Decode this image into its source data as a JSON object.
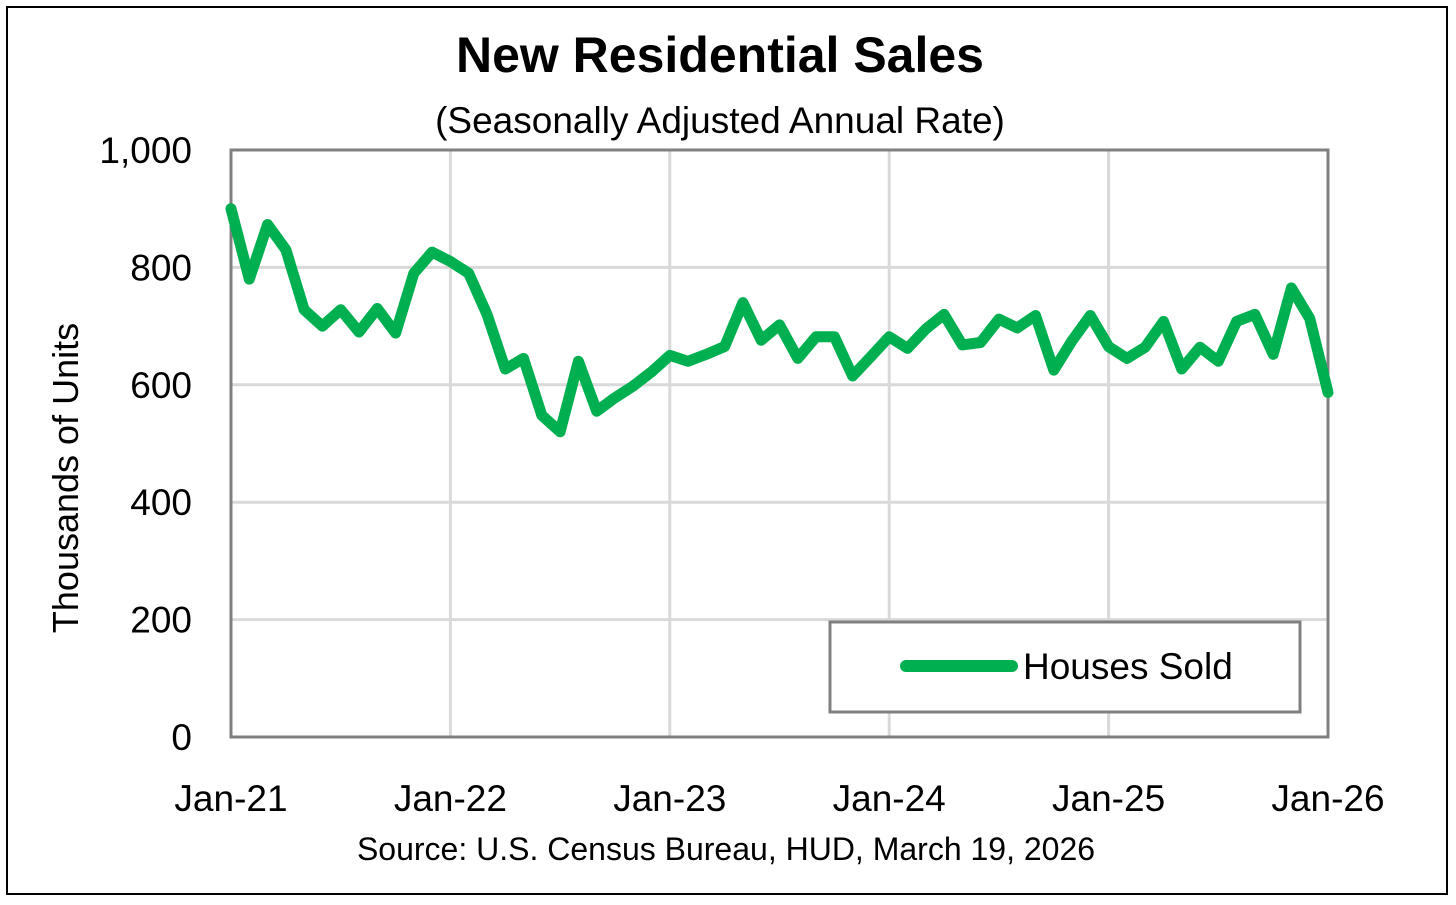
{
  "chart_data": {
    "type": "line",
    "title": "New Residential Sales",
    "subtitle": "(Seasonally Adjusted Annual Rate)",
    "ylabel": "Thousands of Units",
    "xlabel": "",
    "source": "Source:  U.S. Census Bureau, HUD, March 19, 2026",
    "ylim": [
      0,
      1000
    ],
    "yticks": [
      0,
      200,
      400,
      600,
      800,
      1000
    ],
    "ytick_labels": [
      "0",
      "200",
      "400",
      "600",
      "800",
      "1,000"
    ],
    "xticks": [
      0,
      12,
      24,
      36,
      48,
      60
    ],
    "xtick_labels": [
      "Jan-21",
      "Jan-22",
      "Jan-23",
      "Jan-24",
      "Jan-25",
      "Jan-26"
    ],
    "grid": true,
    "legend_position": "bottom-right",
    "series": [
      {
        "name": "Houses Sold",
        "color": "#00b050",
        "start": "Jan-21",
        "frequency": "monthly",
        "values": [
          900,
          780,
          873,
          830,
          728,
          700,
          728,
          690,
          730,
          688,
          790,
          826,
          810,
          790,
          720,
          627,
          645,
          548,
          520,
          640,
          555,
          578,
          598,
          622,
          650,
          640,
          652,
          665,
          740,
          676,
          702,
          645,
          682,
          682,
          615,
          648,
          682,
          662,
          695,
          720,
          668,
          672,
          712,
          697,
          718,
          625,
          675,
          718,
          665,
          645,
          664,
          708,
          627,
          664,
          640,
          708,
          720,
          652,
          765,
          713,
          587
        ]
      }
    ]
  }
}
